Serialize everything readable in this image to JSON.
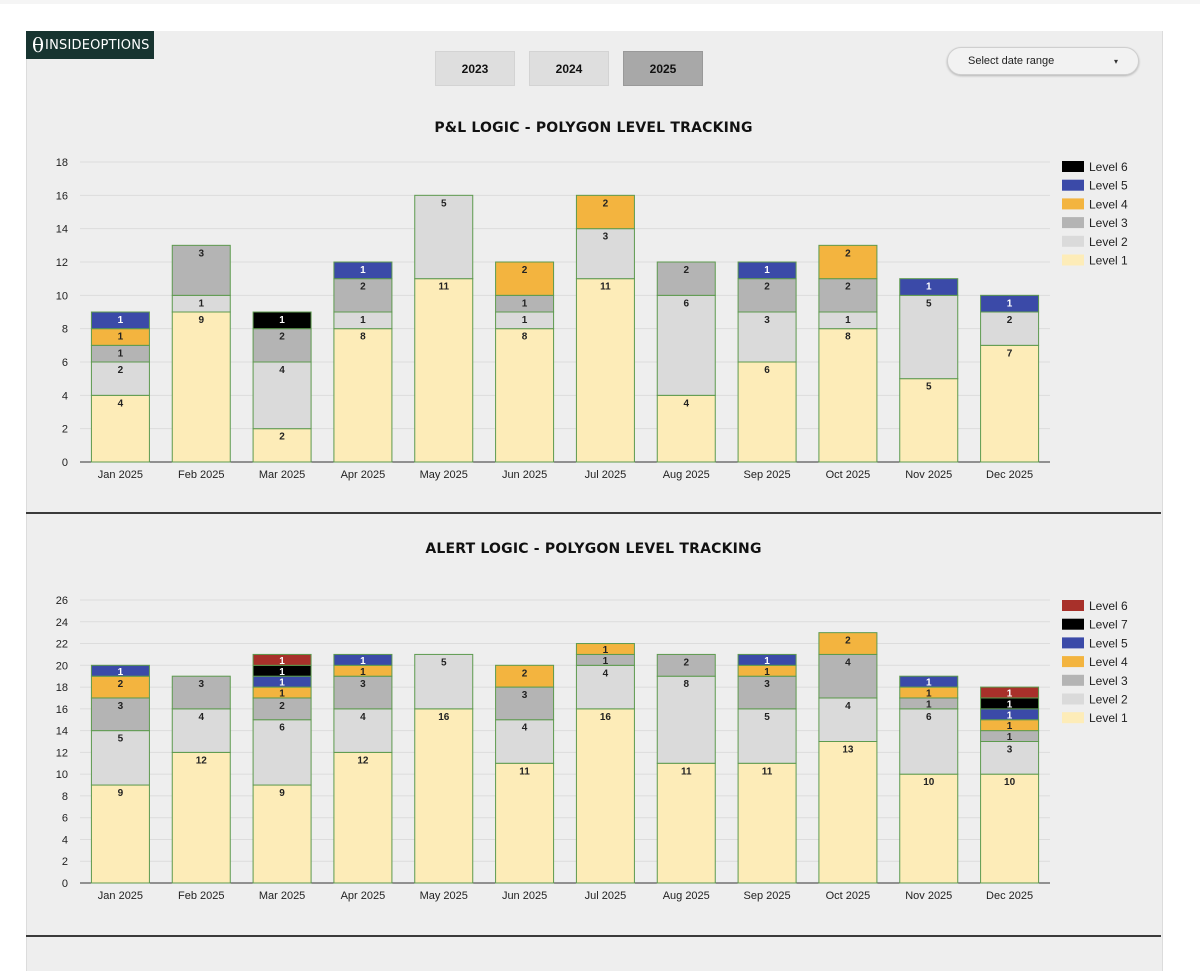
{
  "logo": {
    "mark": "θ",
    "text": "INSIDEOPTIONS"
  },
  "year_buttons": [
    {
      "label": "2023",
      "active": false
    },
    {
      "label": "2024",
      "active": false
    },
    {
      "label": "2025",
      "active": true
    }
  ],
  "date_range": {
    "label": "Select date range",
    "caret": "▾"
  },
  "colors": {
    "level_1": "#fdecb8",
    "level_2": "#dadada",
    "level_3": "#b4b4b4",
    "level_4": "#f3b43f",
    "level_5": "#3b4aa8",
    "level_6_pl": "#000000",
    "level_6_alert": "#a8302a",
    "level_7": "#000000",
    "bar_outline": "#5d9a4e"
  },
  "chart_data": [
    {
      "type": "bar",
      "stacked": true,
      "title": "P&L LOGIC - POLYGON LEVEL TRACKING",
      "categories": [
        "Jan 2025",
        "Feb 2025",
        "Mar 2025",
        "Apr 2025",
        "May 2025",
        "Jun 2025",
        "Jul 2025",
        "Aug 2025",
        "Sep 2025",
        "Oct 2025",
        "Nov 2025",
        "Dec 2025"
      ],
      "ylim": [
        0,
        18
      ],
      "yticks": [
        0,
        2,
        4,
        6,
        8,
        10,
        12,
        14,
        16,
        18
      ],
      "grid": true,
      "legend_position": "top-right",
      "legend": [
        "Level 6",
        "Level 5",
        "Level 4",
        "Level 3",
        "Level 2",
        "Level 1"
      ],
      "series": [
        {
          "name": "Level 1",
          "color": "#fdecb8",
          "values": [
            4,
            9,
            2,
            8,
            11,
            8,
            11,
            4,
            6,
            8,
            5,
            7
          ]
        },
        {
          "name": "Level 2",
          "color": "#dadada",
          "values": [
            2,
            1,
            4,
            1,
            5,
            1,
            3,
            6,
            3,
            1,
            5,
            2
          ]
        },
        {
          "name": "Level 3",
          "color": "#b4b4b4",
          "values": [
            1,
            3,
            2,
            2,
            0,
            1,
            0,
            2,
            2,
            2,
            0,
            0
          ]
        },
        {
          "name": "Level 4",
          "color": "#f3b43f",
          "values": [
            1,
            0,
            0,
            0,
            0,
            2,
            2,
            0,
            0,
            2,
            0,
            0
          ]
        },
        {
          "name": "Level 5",
          "color": "#3b4aa8",
          "values": [
            1,
            0,
            0,
            1,
            0,
            0,
            0,
            0,
            1,
            0,
            1,
            1
          ]
        },
        {
          "name": "Level 6",
          "color": "#000000",
          "values": [
            0,
            0,
            1,
            0,
            0,
            0,
            0,
            0,
            0,
            0,
            0,
            0
          ]
        }
      ]
    },
    {
      "type": "bar",
      "stacked": true,
      "title": "ALERT LOGIC - POLYGON LEVEL TRACKING",
      "categories": [
        "Jan 2025",
        "Feb 2025",
        "Mar 2025",
        "Apr 2025",
        "May 2025",
        "Jun 2025",
        "Jul 2025",
        "Aug 2025",
        "Sep 2025",
        "Oct 2025",
        "Nov 2025",
        "Dec 2025"
      ],
      "ylim": [
        0,
        26
      ],
      "yticks": [
        0,
        2,
        4,
        6,
        8,
        10,
        12,
        14,
        16,
        18,
        20,
        22,
        24,
        26
      ],
      "grid": true,
      "legend_position": "top-right",
      "legend": [
        "Level 6",
        "Level 7",
        "Level 5",
        "Level 4",
        "Level 3",
        "Level 2",
        "Level 1"
      ],
      "series": [
        {
          "name": "Level 1",
          "color": "#fdecb8",
          "values": [
            9,
            12,
            9,
            12,
            16,
            11,
            16,
            11,
            11,
            13,
            10,
            10
          ]
        },
        {
          "name": "Level 2",
          "color": "#dadada",
          "values": [
            5,
            4,
            6,
            4,
            5,
            4,
            4,
            8,
            5,
            4,
            6,
            3
          ]
        },
        {
          "name": "Level 3",
          "color": "#b4b4b4",
          "values": [
            3,
            3,
            2,
            3,
            0,
            3,
            1,
            2,
            3,
            4,
            1,
            1
          ]
        },
        {
          "name": "Level 4",
          "color": "#f3b43f",
          "values": [
            2,
            0,
            1,
            1,
            0,
            2,
            1,
            0,
            1,
            2,
            1,
            1
          ]
        },
        {
          "name": "Level 5",
          "color": "#3b4aa8",
          "values": [
            1,
            0,
            1,
            1,
            0,
            0,
            0,
            0,
            1,
            0,
            1,
            1
          ]
        },
        {
          "name": "Level 7",
          "color": "#000000",
          "values": [
            0,
            0,
            1,
            0,
            0,
            0,
            0,
            0,
            0,
            0,
            0,
            1
          ]
        },
        {
          "name": "Level 6",
          "color": "#a8302a",
          "values": [
            0,
            0,
            1,
            0,
            0,
            0,
            0,
            0,
            0,
            0,
            0,
            1
          ]
        }
      ]
    }
  ]
}
